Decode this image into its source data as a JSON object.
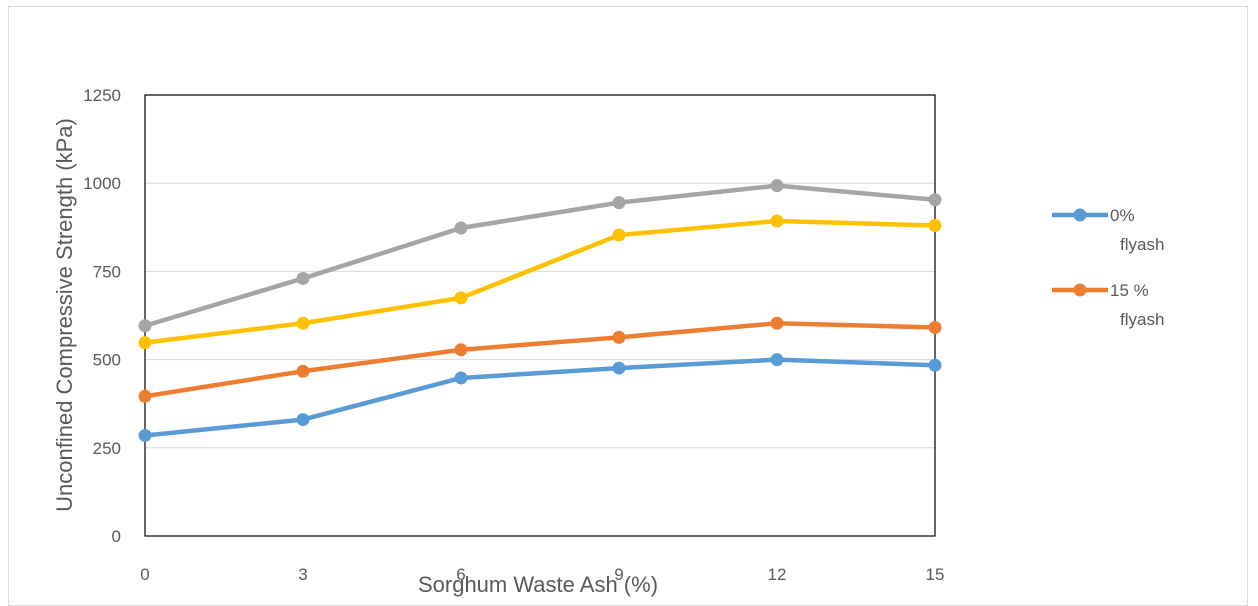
{
  "chart_data": {
    "type": "line",
    "title": "",
    "xlabel": "Sorghum Waste Ash (%)",
    "ylabel": "Unconfined Compressive Strength (kPa)",
    "x": [
      0,
      3,
      6,
      9,
      12,
      15
    ],
    "xlim": [
      0,
      15
    ],
    "ylim": [
      0,
      1250
    ],
    "yticks": [
      0,
      250,
      500,
      750,
      1000,
      1250
    ],
    "grid": true,
    "legend_position": "right",
    "series": [
      {
        "name": "0% flyash",
        "color": "#5b9bd5",
        "values": [
          285,
          330,
          448,
          476,
          500,
          484
        ]
      },
      {
        "name": "15 % flyash",
        "color": "#ed7d31",
        "values": [
          396,
          467,
          528,
          563,
          603,
          591
        ]
      },
      {
        "color": "#a5a5a5",
        "values": [
          596,
          730,
          873,
          945,
          993,
          953
        ]
      },
      {
        "color": "#ffc000",
        "values": [
          548,
          603,
          675,
          853,
          893,
          880
        ]
      }
    ],
    "legend": [
      {
        "line1": "0%",
        "line2": "flyash",
        "color": "#5b9bd5"
      },
      {
        "line1": "15 %",
        "line2": "flyash",
        "color": "#ed7d31"
      }
    ]
  }
}
